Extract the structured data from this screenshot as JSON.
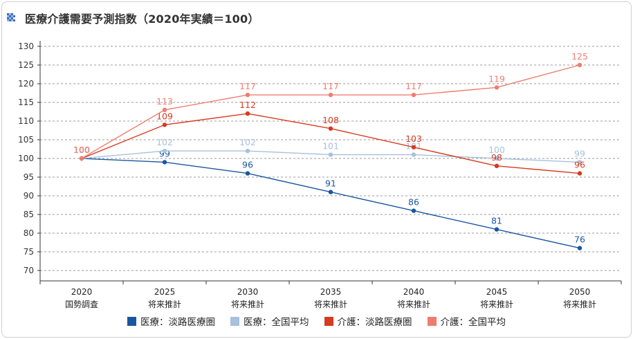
{
  "title": "医療介護需要予測指数（2020年実績＝100）",
  "chart_data": {
    "type": "line",
    "categories": [
      {
        "year": "2020",
        "note": "国勢調査"
      },
      {
        "year": "2025",
        "note": "将来推計"
      },
      {
        "year": "2030",
        "note": "将来推計"
      },
      {
        "year": "2035",
        "note": "将来推計"
      },
      {
        "year": "2040",
        "note": "将来推計"
      },
      {
        "year": "2045",
        "note": "将来推計"
      },
      {
        "year": "2050",
        "note": "将来推計"
      }
    ],
    "ylim": [
      70,
      130
    ],
    "yticks": [
      70,
      75,
      80,
      85,
      90,
      95,
      100,
      105,
      110,
      115,
      120,
      125,
      130
    ],
    "grid": true,
    "legend_position": "bottom",
    "series": [
      {
        "name": "医療：淡路医療圏",
        "color": "#1a56a0",
        "values": [
          100,
          99,
          96,
          91,
          86,
          81,
          76
        ]
      },
      {
        "name": "医療：全国平均",
        "color": "#a7c0db",
        "values": [
          100,
          102,
          102,
          101,
          101,
          100,
          99
        ]
      },
      {
        "name": "介護：淡路医療圏",
        "color": "#d63a1f",
        "values": [
          100,
          109,
          112,
          108,
          103,
          98,
          96
        ]
      },
      {
        "name": "介護：全国平均",
        "color": "#ef7d6e",
        "values": [
          100,
          113,
          117,
          117,
          117,
          119,
          125
        ]
      }
    ]
  }
}
